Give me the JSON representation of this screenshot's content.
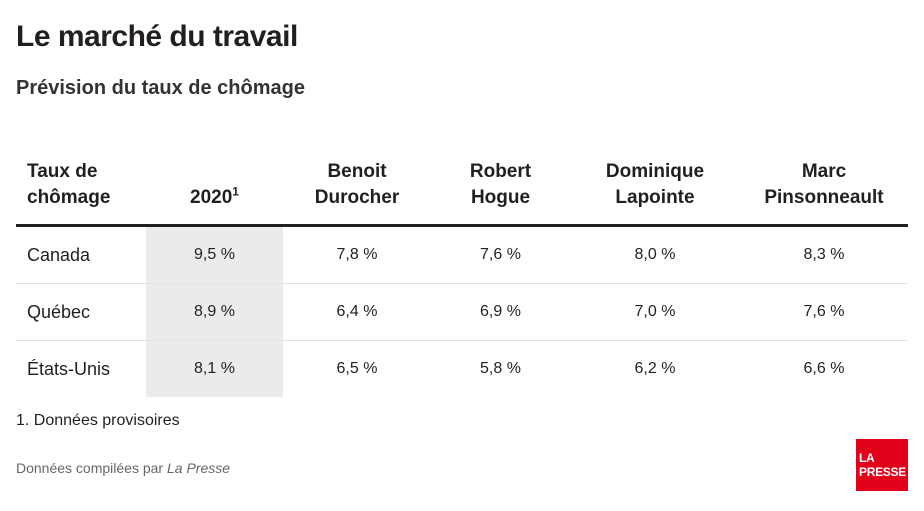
{
  "title": "Le marché du travail",
  "subtitle": "Prévision du taux de chômage",
  "chart_data": {
    "type": "table",
    "columns": [
      {
        "label": "Taux de chômage",
        "line1": "Taux de",
        "line2": "chômage"
      },
      {
        "label": "2020",
        "line1": "",
        "line2": "2020",
        "sup": "1",
        "highlight": true
      },
      {
        "label": "Benoit Durocher",
        "line1": "Benoit",
        "line2": "Durocher"
      },
      {
        "label": "Robert Hogue",
        "line1": "Robert",
        "line2": "Hogue"
      },
      {
        "label": "Dominique Lapointe",
        "line1": "Dominique",
        "line2": "Lapointe"
      },
      {
        "label": "Marc Pinsonneault",
        "line1": "Marc",
        "line2": "Pinsonneault"
      }
    ],
    "rows": [
      {
        "name": "Canada",
        "values": [
          "9,5 %",
          "7,8 %",
          "7,6 %",
          "8,0 %",
          "8,3 %"
        ]
      },
      {
        "name": "Québec",
        "values": [
          "8,9 %",
          "6,4 %",
          "6,9 %",
          "7,0 %",
          "7,6 %"
        ]
      },
      {
        "name": "États-Unis",
        "values": [
          "8,1 %",
          "6,5 %",
          "5,8 %",
          "6,2 %",
          "6,6 %"
        ]
      }
    ],
    "highlight_color": "#ebebeb"
  },
  "footnote": "1. Données provisoires",
  "source": {
    "prefix": "Données compilées par ",
    "publication": "La Presse"
  },
  "logo": {
    "line1": "LA",
    "line2": "PRESSE",
    "color": "#e2001a"
  }
}
